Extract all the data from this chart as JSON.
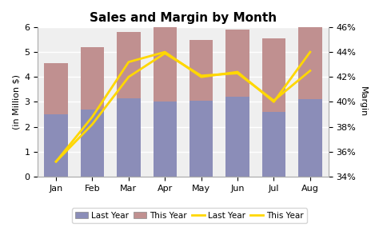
{
  "months": [
    "Jan",
    "Feb",
    "Mar",
    "Apr",
    "May",
    "Jun",
    "Jul",
    "Aug"
  ],
  "bar_last_year": [
    2.5,
    2.7,
    3.15,
    3.0,
    3.05,
    3.2,
    2.6,
    3.1
  ],
  "bar_this_year": [
    2.05,
    2.5,
    2.65,
    3.2,
    2.45,
    2.7,
    2.95,
    3.0
  ],
  "line_last_year": [
    35.2,
    38.2,
    42.0,
    43.9,
    42.1,
    42.3,
    40.1,
    42.5
  ],
  "line_this_year": [
    35.2,
    38.8,
    43.2,
    44.0,
    42.0,
    42.4,
    40.0,
    44.0
  ],
  "color_bar_last_year": "#8B8DB8",
  "color_bar_this_year": "#C09090",
  "color_line_last_year": "#FFD700",
  "color_line_this_year": "#FFD700",
  "title": "Sales and Margin by Month",
  "ylabel_left": "(in Million $)",
  "ylabel_right": "Margin",
  "ylim_left": [
    0,
    6
  ],
  "ylim_right": [
    34,
    46
  ],
  "yticks_left": [
    0,
    1,
    2,
    3,
    4,
    5,
    6
  ],
  "yticks_right": [
    34,
    36,
    38,
    40,
    42,
    44,
    46
  ],
  "background_color": "#FFFFFF",
  "plot_bg_color": "#EFEFEF",
  "grid_color": "#FFFFFF",
  "title_fontsize": 11,
  "axis_fontsize": 8,
  "tick_fontsize": 8
}
